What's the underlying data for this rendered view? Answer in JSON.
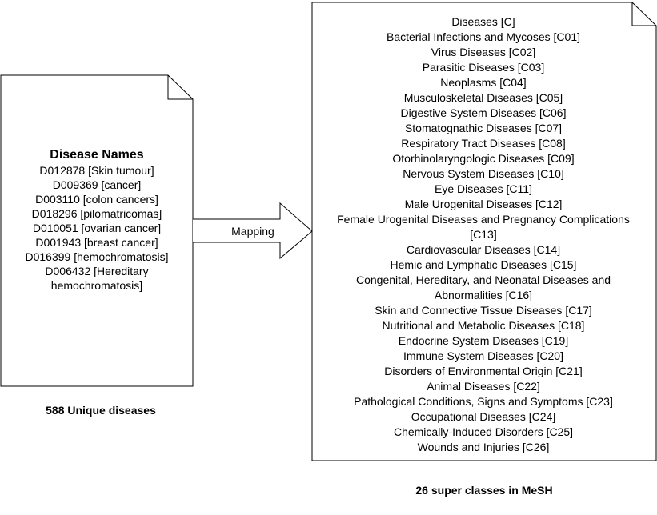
{
  "left_doc": {
    "title": "Disease Names",
    "items": [
      "D012878 [Skin tumour]",
      "D009369 [cancer]",
      "D003110 [colon cancers]",
      "D018296 [pilomatricomas]",
      "D010051 [ovarian cancer]",
      "D001943 [breast cancer]",
      "D016399 [hemochromatosis]",
      "D006432 [Hereditary",
      "hemochromatosis]"
    ]
  },
  "arrow": {
    "label": "Mapping"
  },
  "right_doc": {
    "items": [
      "Diseases [C]",
      "Bacterial Infections and Mycoses [C01]",
      "Virus Diseases [C02]",
      "Parasitic Diseases [C03]",
      "Neoplasms [C04]",
      "Musculoskeletal Diseases [C05]",
      "Digestive System Diseases [C06]",
      "Stomatognathic Diseases [C07]",
      "Respiratory Tract Diseases [C08]",
      "Otorhinolaryngologic Diseases [C09]",
      "Nervous System Diseases [C10]",
      "Eye Diseases [C11]",
      "Male Urogenital Diseases [C12]",
      "Female Urogenital Diseases and Pregnancy Complications",
      "[C13]",
      "Cardiovascular Diseases [C14]",
      "Hemic and Lymphatic Diseases [C15]",
      "Congenital, Hereditary, and Neonatal Diseases and",
      "Abnormalities [C16]",
      "Skin and Connective Tissue Diseases [C17]",
      "Nutritional and Metabolic Diseases [C18]",
      "Endocrine System Diseases [C19]",
      "Immune System Diseases [C20]",
      "Disorders of Environmental Origin [C21]",
      "Animal Diseases [C22]",
      "Pathological Conditions, Signs and Symptoms [C23]",
      "Occupational Diseases [C24]",
      "Chemically-Induced Disorders [C25]",
      "Wounds and Injuries [C26]"
    ]
  },
  "captions": {
    "left": "588 Unique diseases",
    "right": "26 super classes in MeSH"
  }
}
